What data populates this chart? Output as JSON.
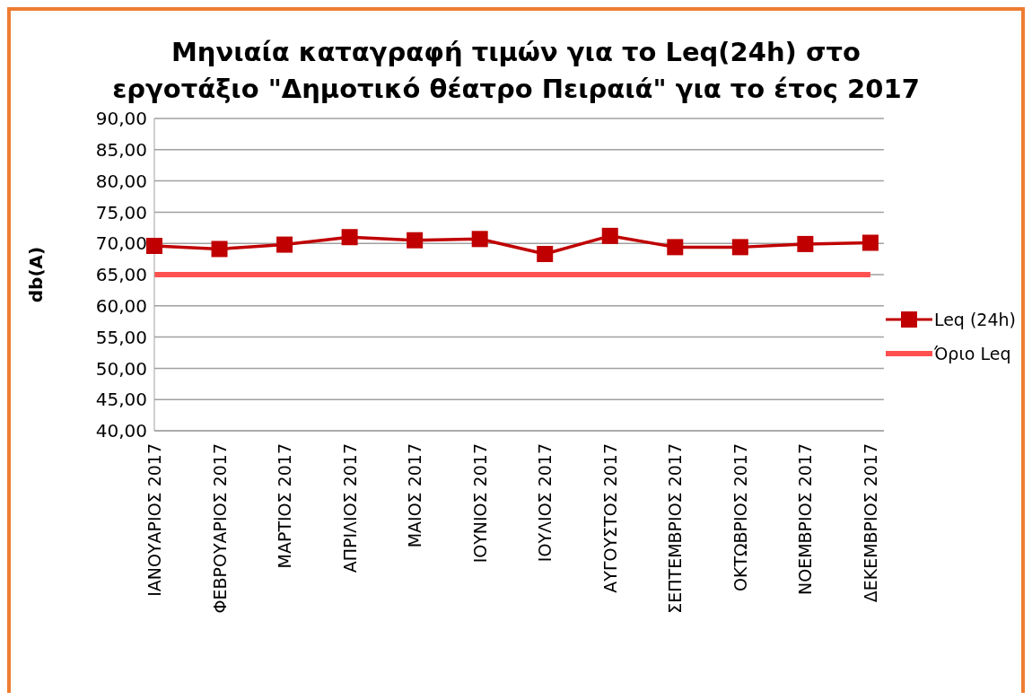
{
  "chart_data": {
    "type": "line",
    "title": "Μηνιαία καταγραφή τιμών για το Leq(24h) στο εργοτάξιο \"Δημοτικό θέατρο Πειραιά\" για το έτος 2017",
    "ylabel": "db(A)",
    "categories": [
      "ΙΑΝΟΥΑΡΙΟΣ 2017",
      "ΦΕΒΡΟΥΑΡΙΟΣ 2017",
      "ΜΑΡΤΙΟΣ 2017",
      "ΑΠΡΙΛΙΟΣ 2017",
      "ΜΑΙΟΣ 2017",
      "ΙΟΥΝΙΟΣ 2017",
      "ΙΟΥΛΙΟΣ 2017",
      "ΑΥΓΟΥΣΤΟΣ 2017",
      "ΣΕΠΤΕΜΒΡΙΟΣ 2017",
      "ΟΚΤΩΒΡΙΟΣ 2017",
      "ΝΟΕΜΒΡΙΟΣ 2017",
      "ΔΕΚΕΜΒΡΙΟΣ 2017"
    ],
    "series": [
      {
        "name": "Leq (24h)",
        "color": "#c00000",
        "values": [
          69.6,
          69.1,
          69.8,
          71.0,
          70.5,
          70.7,
          68.3,
          71.2,
          69.4,
          69.4,
          69.9,
          70.1
        ]
      },
      {
        "name": "Όριο Leq",
        "color": "#ff5050",
        "marker": "none",
        "values": [
          65,
          65,
          65,
          65,
          65,
          65,
          65,
          65,
          65,
          65,
          65,
          65
        ]
      }
    ],
    "ylim": [
      40,
      90
    ],
    "yticks": [
      {
        "value": 40,
        "label": "40,00"
      },
      {
        "value": 45,
        "label": "45,00"
      },
      {
        "value": 50,
        "label": "50,00"
      },
      {
        "value": 55,
        "label": "55,00"
      },
      {
        "value": 60,
        "label": "60,00"
      },
      {
        "value": 65,
        "label": "65,00"
      },
      {
        "value": 70,
        "label": "70,00"
      },
      {
        "value": 75,
        "label": "75,00"
      },
      {
        "value": 80,
        "label": "80,00"
      },
      {
        "value": 85,
        "label": "85,00"
      },
      {
        "value": 90,
        "label": "90,00"
      }
    ],
    "grid": "y",
    "legend": "right",
    "marker": "square"
  }
}
